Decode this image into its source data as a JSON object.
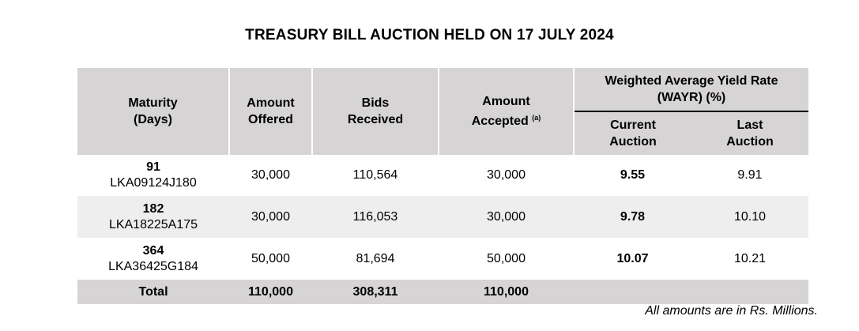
{
  "title": "TREASURY BILL AUCTION HELD ON 17 JULY 2024",
  "headers": {
    "maturity_line1": "Maturity",
    "maturity_line2": "(Days)",
    "offered_line1": "Amount",
    "offered_line2": "Offered",
    "bids_line1": "Bids",
    "bids_line2": "Received",
    "accepted_line1": "Amount",
    "accepted_line2": "Accepted",
    "accepted_sup": "(a)",
    "wayr_line1": "Weighted Average Yield Rate",
    "wayr_line2": "(WAYR) (%)",
    "current_line1": "Current",
    "current_line2": "Auction",
    "last_line1": "Last",
    "last_line2": "Auction"
  },
  "rows": [
    {
      "days": "91",
      "code": "LKA09124J180",
      "offered": "30,000",
      "bids": "110,564",
      "accepted": "30,000",
      "current": "9.55",
      "last": "9.91"
    },
    {
      "days": "182",
      "code": "LKA18225A175",
      "offered": "30,000",
      "bids": "116,053",
      "accepted": "30,000",
      "current": "9.78",
      "last": "10.10"
    },
    {
      "days": "364",
      "code": "LKA36425G184",
      "offered": "50,000",
      "bids": "81,694",
      "accepted": "50,000",
      "current": "10.07",
      "last": "10.21"
    }
  ],
  "total": {
    "label": "Total",
    "offered": "110,000",
    "bids": "308,311",
    "accepted": "110,000"
  },
  "note": "All amounts are in Rs. Millions."
}
